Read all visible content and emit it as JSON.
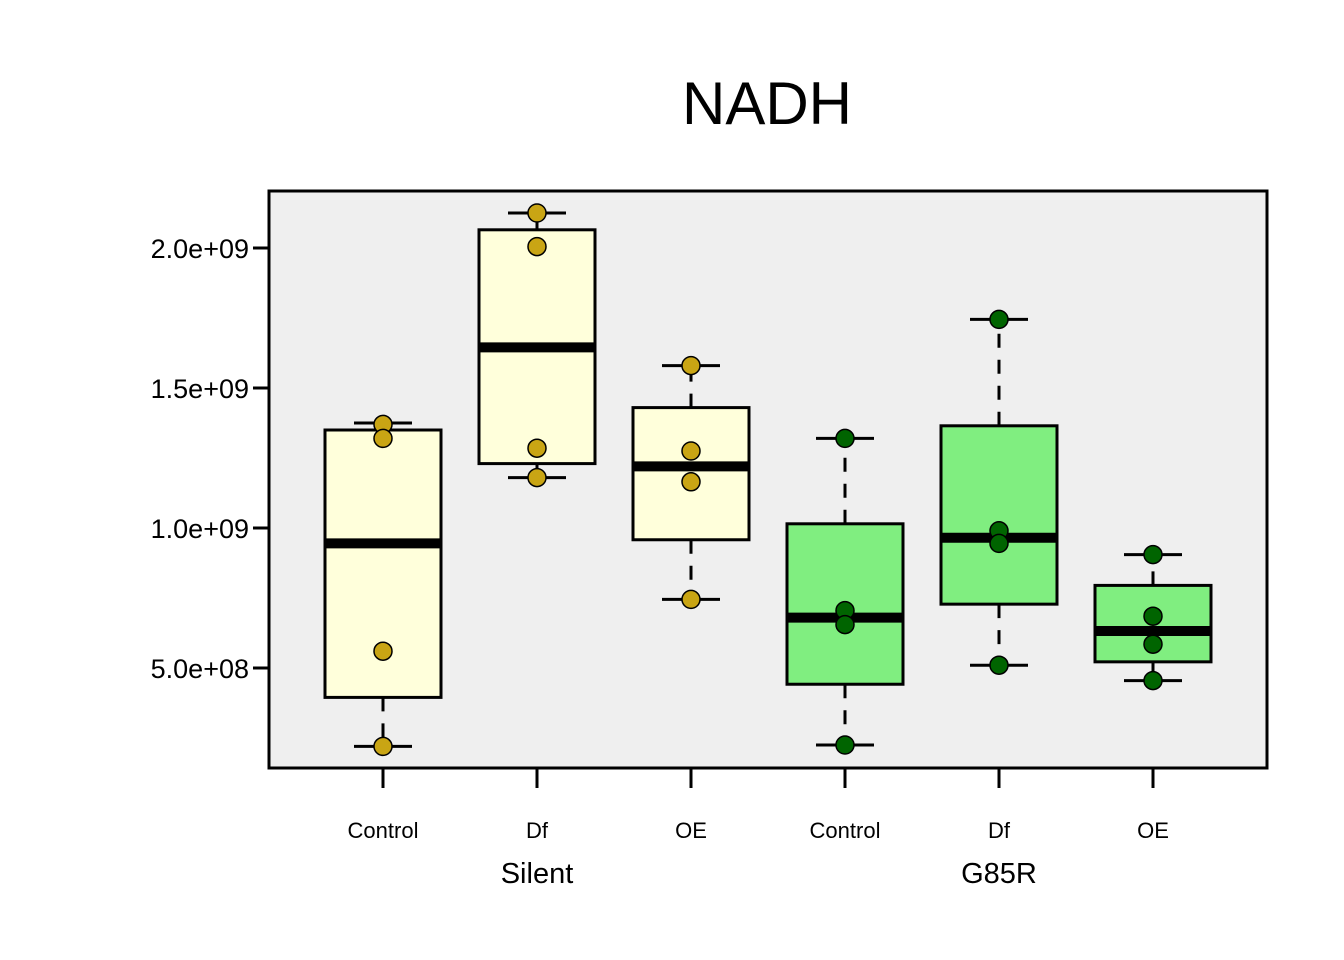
{
  "chart_data": {
    "type": "box",
    "title": "NADH",
    "xlabel": "",
    "ylabel": "",
    "ylim": [
      150000000,
      2200000000
    ],
    "yticks": [
      500000000,
      1000000000,
      1500000000,
      2000000000
    ],
    "ytick_labels": [
      "5.0e+08",
      "1.0e+09",
      "1.5e+09",
      "2.0e+09"
    ],
    "grid": false,
    "legend": "none",
    "groups": [
      {
        "label": "Silent",
        "color": "#ffffdb",
        "point_color": "#c9a514",
        "categories": [
          0,
          1,
          2
        ]
      },
      {
        "label": "G85R",
        "color": "#80ee80",
        "point_color": "#006400",
        "categories": [
          3,
          4,
          5
        ]
      }
    ],
    "categories": [
      "Control",
      "Df",
      "OE",
      "Control",
      "Df",
      "OE"
    ],
    "boxes": [
      {
        "group": "Silent",
        "category": "Control",
        "whisker_low": 220000000,
        "q1": 395000000,
        "median": 945000000,
        "q3": 1350000000,
        "whisker_high": 1375000000,
        "points": [
          1370000000,
          1320000000,
          560000000,
          220000000
        ]
      },
      {
        "group": "Silent",
        "category": "Df",
        "whisker_low": 1180000000,
        "q1": 1230000000,
        "median": 1645000000,
        "q3": 2065000000,
        "whisker_high": 2125000000,
        "points": [
          2125000000,
          2005000000,
          1285000000,
          1180000000
        ]
      },
      {
        "group": "Silent",
        "category": "OE",
        "whisker_low": 745000000,
        "q1": 958000000,
        "median": 1220000000,
        "q3": 1430000000,
        "whisker_high": 1580000000,
        "points": [
          1580000000,
          1275000000,
          1165000000,
          745000000
        ]
      },
      {
        "group": "G85R",
        "category": "Control",
        "whisker_low": 225000000,
        "q1": 442000000,
        "median": 680000000,
        "q3": 1015000000,
        "whisker_high": 1320000000,
        "points": [
          1320000000,
          705000000,
          655000000,
          225000000
        ]
      },
      {
        "group": "G85R",
        "category": "Df",
        "whisker_low": 510000000,
        "q1": 728000000,
        "median": 965000000,
        "q3": 1365000000,
        "whisker_high": 1745000000,
        "points": [
          1745000000,
          990000000,
          945000000,
          510000000
        ]
      },
      {
        "group": "G85R",
        "category": "OE",
        "whisker_low": 455000000,
        "q1": 522000000,
        "median": 632000000,
        "q3": 795000000,
        "whisker_high": 905000000,
        "points": [
          905000000,
          685000000,
          585000000,
          455000000
        ]
      }
    ]
  }
}
